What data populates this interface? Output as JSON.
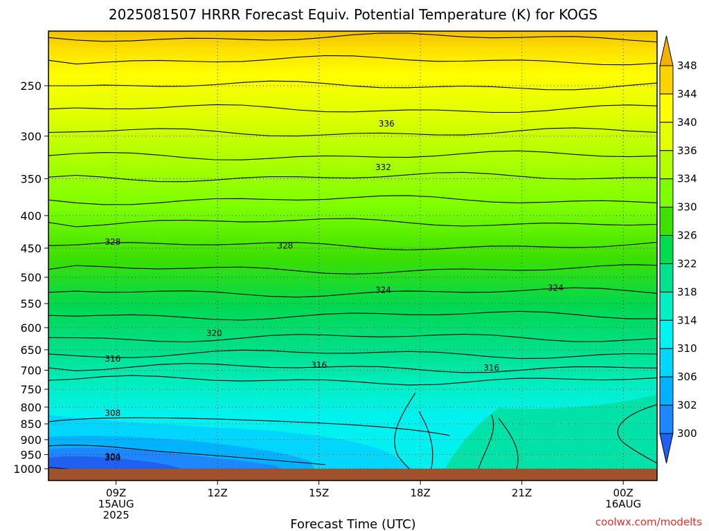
{
  "chart_data": {
    "type": "contour",
    "title": "2025081507 HRRR Forecast Equiv. Potential Temperature (K) for KOGS",
    "xlabel": "Forecast Time (UTC)",
    "ylabel": "",
    "credit": "coolwx.com/modelts",
    "y_axis": {
      "scale": "log-pressure",
      "range": [
        1000,
        200
      ],
      "ticks": [
        "250",
        "300",
        "350",
        "400",
        "450",
        "500",
        "550",
        "600",
        "650",
        "700",
        "750",
        "800",
        "850",
        "900",
        "950",
        "1000"
      ]
    },
    "x_axis": {
      "range_hours": [
        7,
        25
      ],
      "ticks": [
        {
          "hour": 9,
          "line1": "09Z",
          "line2": "15AUG",
          "line3": "2025"
        },
        {
          "hour": 12,
          "line1": "12Z",
          "line2": "",
          "line3": ""
        },
        {
          "hour": 15,
          "line1": "15Z",
          "line2": "",
          "line3": ""
        },
        {
          "hour": 18,
          "line1": "18Z",
          "line2": "",
          "line3": ""
        },
        {
          "hour": 21,
          "line1": "21Z",
          "line2": "",
          "line3": ""
        },
        {
          "hour": 24,
          "line1": "00Z",
          "line2": "16AUG",
          "line3": ""
        }
      ]
    },
    "colorbar": {
      "labels": [
        "348",
        "344",
        "340",
        "336",
        "334",
        "330",
        "326",
        "322",
        "318",
        "314",
        "310",
        "306",
        "302",
        "300"
      ],
      "colors": [
        "#f2b200",
        "#fbd400",
        "#ffff00",
        "#e3ff00",
        "#b4ff00",
        "#7cff00",
        "#3ee000",
        "#00dc50",
        "#00e28e",
        "#00efc4",
        "#00f2f2",
        "#00d6ff",
        "#00b2ff",
        "#1e86ff",
        "#2060f0"
      ]
    },
    "contour_labels": [
      {
        "text": "336",
        "hour": 17.0,
        "pressure": 287
      },
      {
        "text": "332",
        "hour": 16.9,
        "pressure": 336
      },
      {
        "text": "328",
        "hour": 8.9,
        "pressure": 440
      },
      {
        "text": "328",
        "hour": 14.0,
        "pressure": 446
      },
      {
        "text": "324",
        "hour": 16.9,
        "pressure": 524
      },
      {
        "text": "324",
        "hour": 22.0,
        "pressure": 520
      },
      {
        "text": "320",
        "hour": 11.9,
        "pressure": 612
      },
      {
        "text": "316",
        "hour": 8.9,
        "pressure": 672
      },
      {
        "text": "316",
        "hour": 15.0,
        "pressure": 687
      },
      {
        "text": "316",
        "hour": 20.1,
        "pressure": 694
      },
      {
        "text": "308",
        "hour": 8.9,
        "pressure": 818
      },
      {
        "text": "304",
        "hour": 8.9,
        "pressure": 957
      },
      {
        "text": "300",
        "hour": 8.9,
        "pressure": 961
      }
    ],
    "grid": true
  }
}
